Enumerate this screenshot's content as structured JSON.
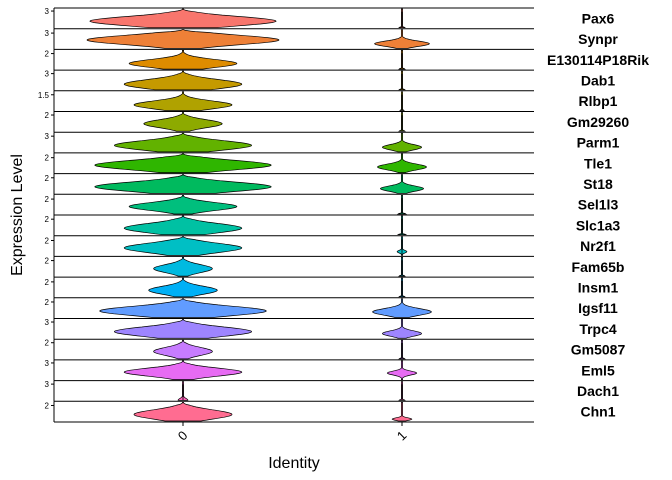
{
  "chart_data": {
    "type": "violin",
    "xlabel": "Identity",
    "ylabel": "Expression Level",
    "categories": [
      "0",
      "1"
    ],
    "series": [
      {
        "name": "Pax6",
        "color": "#F8766D",
        "tick": "3",
        "ymax": 3.2,
        "width": [
          0.95,
          0.03
        ],
        "peak": [
          0.35,
          0.0
        ],
        "spread": [
          0.35,
          0.05
        ]
      },
      {
        "name": "Synpr",
        "color": "#EE8037",
        "tick": "3",
        "ymax": 3.5,
        "width": [
          0.98,
          0.28
        ],
        "peak": [
          0.45,
          0.25
        ],
        "spread": [
          0.35,
          0.2
        ]
      },
      {
        "name": "E130114P18Rik",
        "color": "#DE8C00",
        "tick": "2",
        "ymax": 2.3,
        "width": [
          0.55,
          0.03
        ],
        "peak": [
          0.3,
          0.0
        ],
        "spread": [
          0.3,
          0.05
        ]
      },
      {
        "name": "Dab1",
        "color": "#C59A00",
        "tick": "3",
        "ymax": 3.3,
        "width": [
          0.6,
          0.03
        ],
        "peak": [
          0.3,
          0.0
        ],
        "spread": [
          0.35,
          0.05
        ]
      },
      {
        "name": "Rlbp1",
        "color": "#B0A200",
        "tick": "1.5",
        "ymax": 1.7,
        "width": [
          0.5,
          0.02
        ],
        "peak": [
          0.3,
          0.0
        ],
        "spread": [
          0.3,
          0.05
        ]
      },
      {
        "name": "Gm29260",
        "color": "#8DAA00",
        "tick": "2",
        "ymax": 2.2,
        "width": [
          0.4,
          0.03
        ],
        "peak": [
          0.4,
          0.0
        ],
        "spread": [
          0.3,
          0.05
        ]
      },
      {
        "name": "Parm1",
        "color": "#62B200",
        "tick": "3",
        "ymax": 3.4,
        "width": [
          0.7,
          0.2
        ],
        "peak": [
          0.35,
          0.25
        ],
        "spread": [
          0.35,
          0.2
        ]
      },
      {
        "name": "Tle1",
        "color": "#2FB600",
        "tick": "2",
        "ymax": 2.4,
        "width": [
          0.9,
          0.25
        ],
        "peak": [
          0.4,
          0.3
        ],
        "spread": [
          0.35,
          0.22
        ]
      },
      {
        "name": "St18",
        "color": "#00BA5E",
        "tick": "2",
        "ymax": 2.3,
        "width": [
          0.9,
          0.22
        ],
        "peak": [
          0.35,
          0.25
        ],
        "spread": [
          0.35,
          0.2
        ]
      },
      {
        "name": "Sel1l3",
        "color": "#00BF7D",
        "tick": "2",
        "ymax": 2.4,
        "width": [
          0.55,
          0.04
        ],
        "peak": [
          0.4,
          0.0
        ],
        "spread": [
          0.3,
          0.05
        ]
      },
      {
        "name": "Slc1a3",
        "color": "#00C1A3",
        "tick": "2",
        "ymax": 2.3,
        "width": [
          0.6,
          0.04
        ],
        "peak": [
          0.35,
          0.0
        ],
        "spread": [
          0.35,
          0.05
        ]
      },
      {
        "name": "Nr2f1",
        "color": "#00BFC4",
        "tick": "2",
        "ymax": 2.4,
        "width": [
          0.6,
          0.05
        ],
        "peak": [
          0.4,
          0.2
        ],
        "spread": [
          0.35,
          0.1
        ]
      },
      {
        "name": "Fam65b",
        "color": "#00BAE0",
        "tick": "2",
        "ymax": 2.3,
        "width": [
          0.3,
          0.03
        ],
        "peak": [
          0.4,
          0.0
        ],
        "spread": [
          0.3,
          0.05
        ]
      },
      {
        "name": "Insm1",
        "color": "#00B0F6",
        "tick": "2",
        "ymax": 2.4,
        "width": [
          0.35,
          0.03
        ],
        "peak": [
          0.35,
          0.0
        ],
        "spread": [
          0.3,
          0.05
        ]
      },
      {
        "name": "Igsf11",
        "color": "#619CFF",
        "tick": "2",
        "ymax": 2.3,
        "width": [
          0.85,
          0.3
        ],
        "peak": [
          0.35,
          0.3
        ],
        "spread": [
          0.35,
          0.25
        ]
      },
      {
        "name": "Trpc4",
        "color": "#9E85FF",
        "tick": "3",
        "ymax": 3.3,
        "width": [
          0.7,
          0.2
        ],
        "peak": [
          0.35,
          0.25
        ],
        "spread": [
          0.35,
          0.2
        ]
      },
      {
        "name": "Gm5087",
        "color": "#C77CFF",
        "tick": "2",
        "ymax": 2.2,
        "width": [
          0.3,
          0.03
        ],
        "peak": [
          0.4,
          0.0
        ],
        "spread": [
          0.3,
          0.05
        ]
      },
      {
        "name": "Eml5",
        "color": "#E76BF3",
        "tick": "3",
        "ymax": 3.2,
        "width": [
          0.6,
          0.15
        ],
        "peak": [
          0.4,
          0.35
        ],
        "spread": [
          0.3,
          0.15
        ]
      },
      {
        "name": "Dach1",
        "color": "#FF62BC",
        "tick": "3",
        "ymax": 3.3,
        "width": [
          0.05,
          0.03
        ],
        "peak": [
          0.0,
          0.0
        ],
        "spread": [
          0.15,
          0.05
        ]
      },
      {
        "name": "Chn1",
        "color": "#FF6C91",
        "tick": "2",
        "ymax": 2.3,
        "width": [
          0.5,
          0.1
        ],
        "peak": [
          0.35,
          0.1
        ],
        "spread": [
          0.35,
          0.1
        ]
      }
    ]
  }
}
